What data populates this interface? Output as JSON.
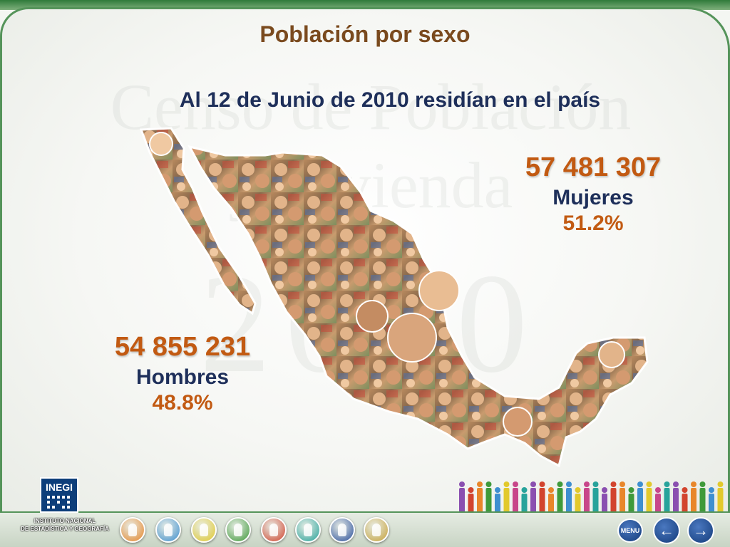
{
  "slide": {
    "title": "Población por sexo",
    "subtitle": "Al 12 de Junio de 2010 residían en el país"
  },
  "women": {
    "count": "57 481 307",
    "label": "Mujeres",
    "percent": "51.2%"
  },
  "men": {
    "count": "54 855 231",
    "label": "Hombres",
    "percent": "48.8%"
  },
  "watermark": {
    "line1": "Censo de Población",
    "line2": "y Vivienda",
    "year": "2010"
  },
  "logo": {
    "name": "INEGI",
    "caption_line1": "INSTITUTO NACIONAL",
    "caption_line2": "DE ESTADÍSTICA Y GEOGRAFÍA"
  },
  "navigation": {
    "menu_label": "MENU",
    "buttons": [
      {
        "icon": "people-orange-icon",
        "color": "#e8862a"
      },
      {
        "icon": "person-blue-icon",
        "color": "#3e8fd0"
      },
      {
        "icon": "person-yellow-icon",
        "color": "#e2c92c"
      },
      {
        "icon": "people-green-icon",
        "color": "#3f9a3a"
      },
      {
        "icon": "house-red-icon",
        "color": "#d2442e"
      },
      {
        "icon": "house-teal-icon",
        "color": "#27a39b"
      },
      {
        "icon": "mexico-map-icon",
        "color": "#2a4f9c"
      },
      {
        "icon": "document-icon",
        "color": "#c8a23a"
      }
    ],
    "back_icon": "arrow-left-icon",
    "forward_icon": "arrow-right-icon"
  },
  "colors": {
    "accent_orange": "#c25a12",
    "title_brown": "#7a4a1e",
    "text_navy": "#1e2f5a",
    "frame_green": "#55945a"
  }
}
